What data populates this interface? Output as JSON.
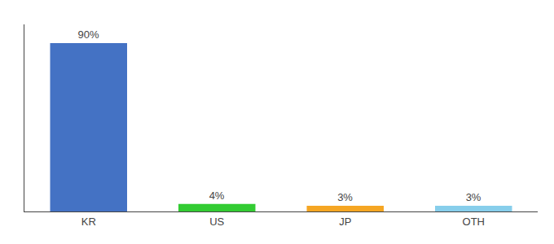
{
  "chart_data": {
    "type": "bar",
    "categories": [
      "KR",
      "US",
      "JP",
      "OTH"
    ],
    "values": [
      90,
      4,
      3,
      3
    ],
    "value_labels": [
      "90%",
      "4%",
      "3%",
      "3%"
    ],
    "colors": [
      "#4472c4",
      "#33cc33",
      "#f5a623",
      "#87ceeb"
    ],
    "ylim": [
      0,
      100
    ],
    "data_labels": true,
    "tick_labels": "x",
    "grid": false
  }
}
